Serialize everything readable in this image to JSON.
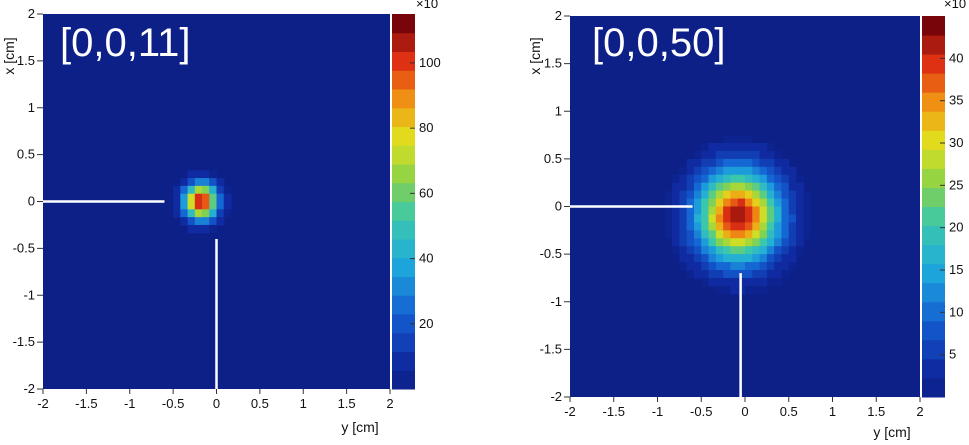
{
  "charts": [
    {
      "id": "left",
      "label": "[0,0,11]",
      "colorbar_multiplier": "×10",
      "colorbar_ticks": [
        "20",
        "40",
        "60",
        "80",
        "100"
      ],
      "colorbar_max": 115,
      "xlabel": "y [cm]",
      "ylabel": "x [cm]"
    },
    {
      "id": "right",
      "label": "[0,0,50]",
      "colorbar_multiplier": "×10",
      "colorbar_ticks": [
        "5",
        "10",
        "15",
        "20",
        "25",
        "30",
        "35",
        "40"
      ],
      "colorbar_max": 45,
      "xlabel": "y [cm]",
      "ylabel": "x [cm]"
    }
  ],
  "chart_data": [
    {
      "type": "heatmap",
      "title": "[0,0,11]",
      "xlabel": "y [cm]",
      "ylabel": "x [cm]",
      "xlim": [
        -2,
        2
      ],
      "ylim": [
        -2,
        2
      ],
      "x_ticks": [
        "-2",
        "-1.5",
        "-1",
        "-0.5",
        "0",
        "0.5",
        "1",
        "1.5",
        "2"
      ],
      "y_ticks": [
        "-2",
        "-1.5",
        "-1",
        "-0.5",
        "0",
        "0.5",
        "1",
        "1.5",
        "2"
      ],
      "colorbar": {
        "min": 0,
        "max": 115,
        "multiplier": "×10",
        "ticks": [
          20,
          40,
          60,
          80,
          100
        ]
      },
      "peak": {
        "y": -0.18,
        "x": 0.0,
        "value": 115
      },
      "spot_sigma_cm": 0.13,
      "marker_lines": [
        {
          "orientation": "horizontal",
          "at_x": 0.0,
          "from_y": -2,
          "to_y": -0.6
        },
        {
          "orientation": "vertical",
          "at_y": 0.0,
          "from_x": -2,
          "to_x": -0.4
        }
      ]
    },
    {
      "type": "heatmap",
      "title": "[0,0,50]",
      "xlabel": "y [cm]",
      "ylabel": "x [cm]",
      "xlim": [
        -2,
        2
      ],
      "ylim": [
        -2,
        2
      ],
      "x_ticks": [
        "-2",
        "-1.5",
        "-1",
        "-0.5",
        "0",
        "0.5",
        "1",
        "1.5",
        "2"
      ],
      "y_ticks": [
        "-2",
        "-1.5",
        "-1",
        "-0.5",
        "0",
        "0.5",
        "1",
        "1.5",
        "2"
      ],
      "colorbar": {
        "min": 0,
        "max": 45,
        "multiplier": "×10",
        "ticks": [
          5,
          10,
          15,
          20,
          25,
          30,
          35,
          40
        ]
      },
      "peak": {
        "y": -0.08,
        "x": -0.1,
        "value": 45
      },
      "spot_sigma_cm": 0.32,
      "marker_lines": [
        {
          "orientation": "horizontal",
          "at_x": 0.0,
          "from_y": -2,
          "to_y": -0.6
        },
        {
          "orientation": "vertical",
          "at_y": -0.05,
          "from_x": -2,
          "to_x": -0.7
        }
      ]
    }
  ]
}
